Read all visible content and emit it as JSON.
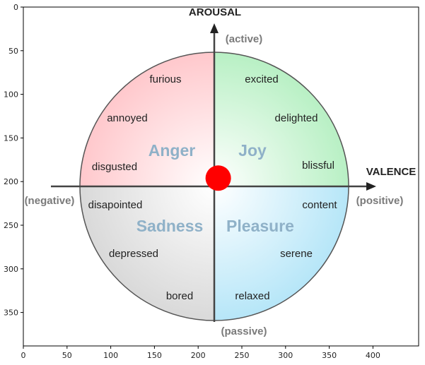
{
  "diagram": {
    "axes": {
      "x_ticks": [
        "0",
        "50",
        "100",
        "150",
        "200",
        "250",
        "300",
        "350",
        "400"
      ],
      "y_ticks": [
        "0",
        "50",
        "100",
        "150",
        "200",
        "250",
        "300",
        "350"
      ]
    },
    "axis_titles": {
      "vertical": "AROUSAL",
      "horizontal": "VALENCE"
    },
    "pole_labels": {
      "top": "(active)",
      "bottom": "(passive)",
      "left": "(negative)",
      "right": "(positive)"
    },
    "quadrants": {
      "top_left": "Anger",
      "top_right": "Joy",
      "bottom_left": "Sadness",
      "bottom_right": "Pleasure"
    },
    "emotions": {
      "furious": "furious",
      "annoyed": "annoyed",
      "disgusted": "disgusted",
      "excited": "excited",
      "delighted": "delighted",
      "blissful": "blissful",
      "disapointed": "disapointed",
      "depressed": "depressed",
      "bored": "bored",
      "content": "content",
      "serene": "serene",
      "relaxed": "relaxed"
    },
    "marker": {
      "x": 223,
      "y": 196,
      "color": "#ff0000"
    },
    "colors": {
      "anger": "#ffc8cc",
      "joy": "#b8f0c4",
      "sadness": "#dcdcdc",
      "pleasure": "#b6e6f8",
      "quadrant_text": "#8fb1c8"
    }
  }
}
